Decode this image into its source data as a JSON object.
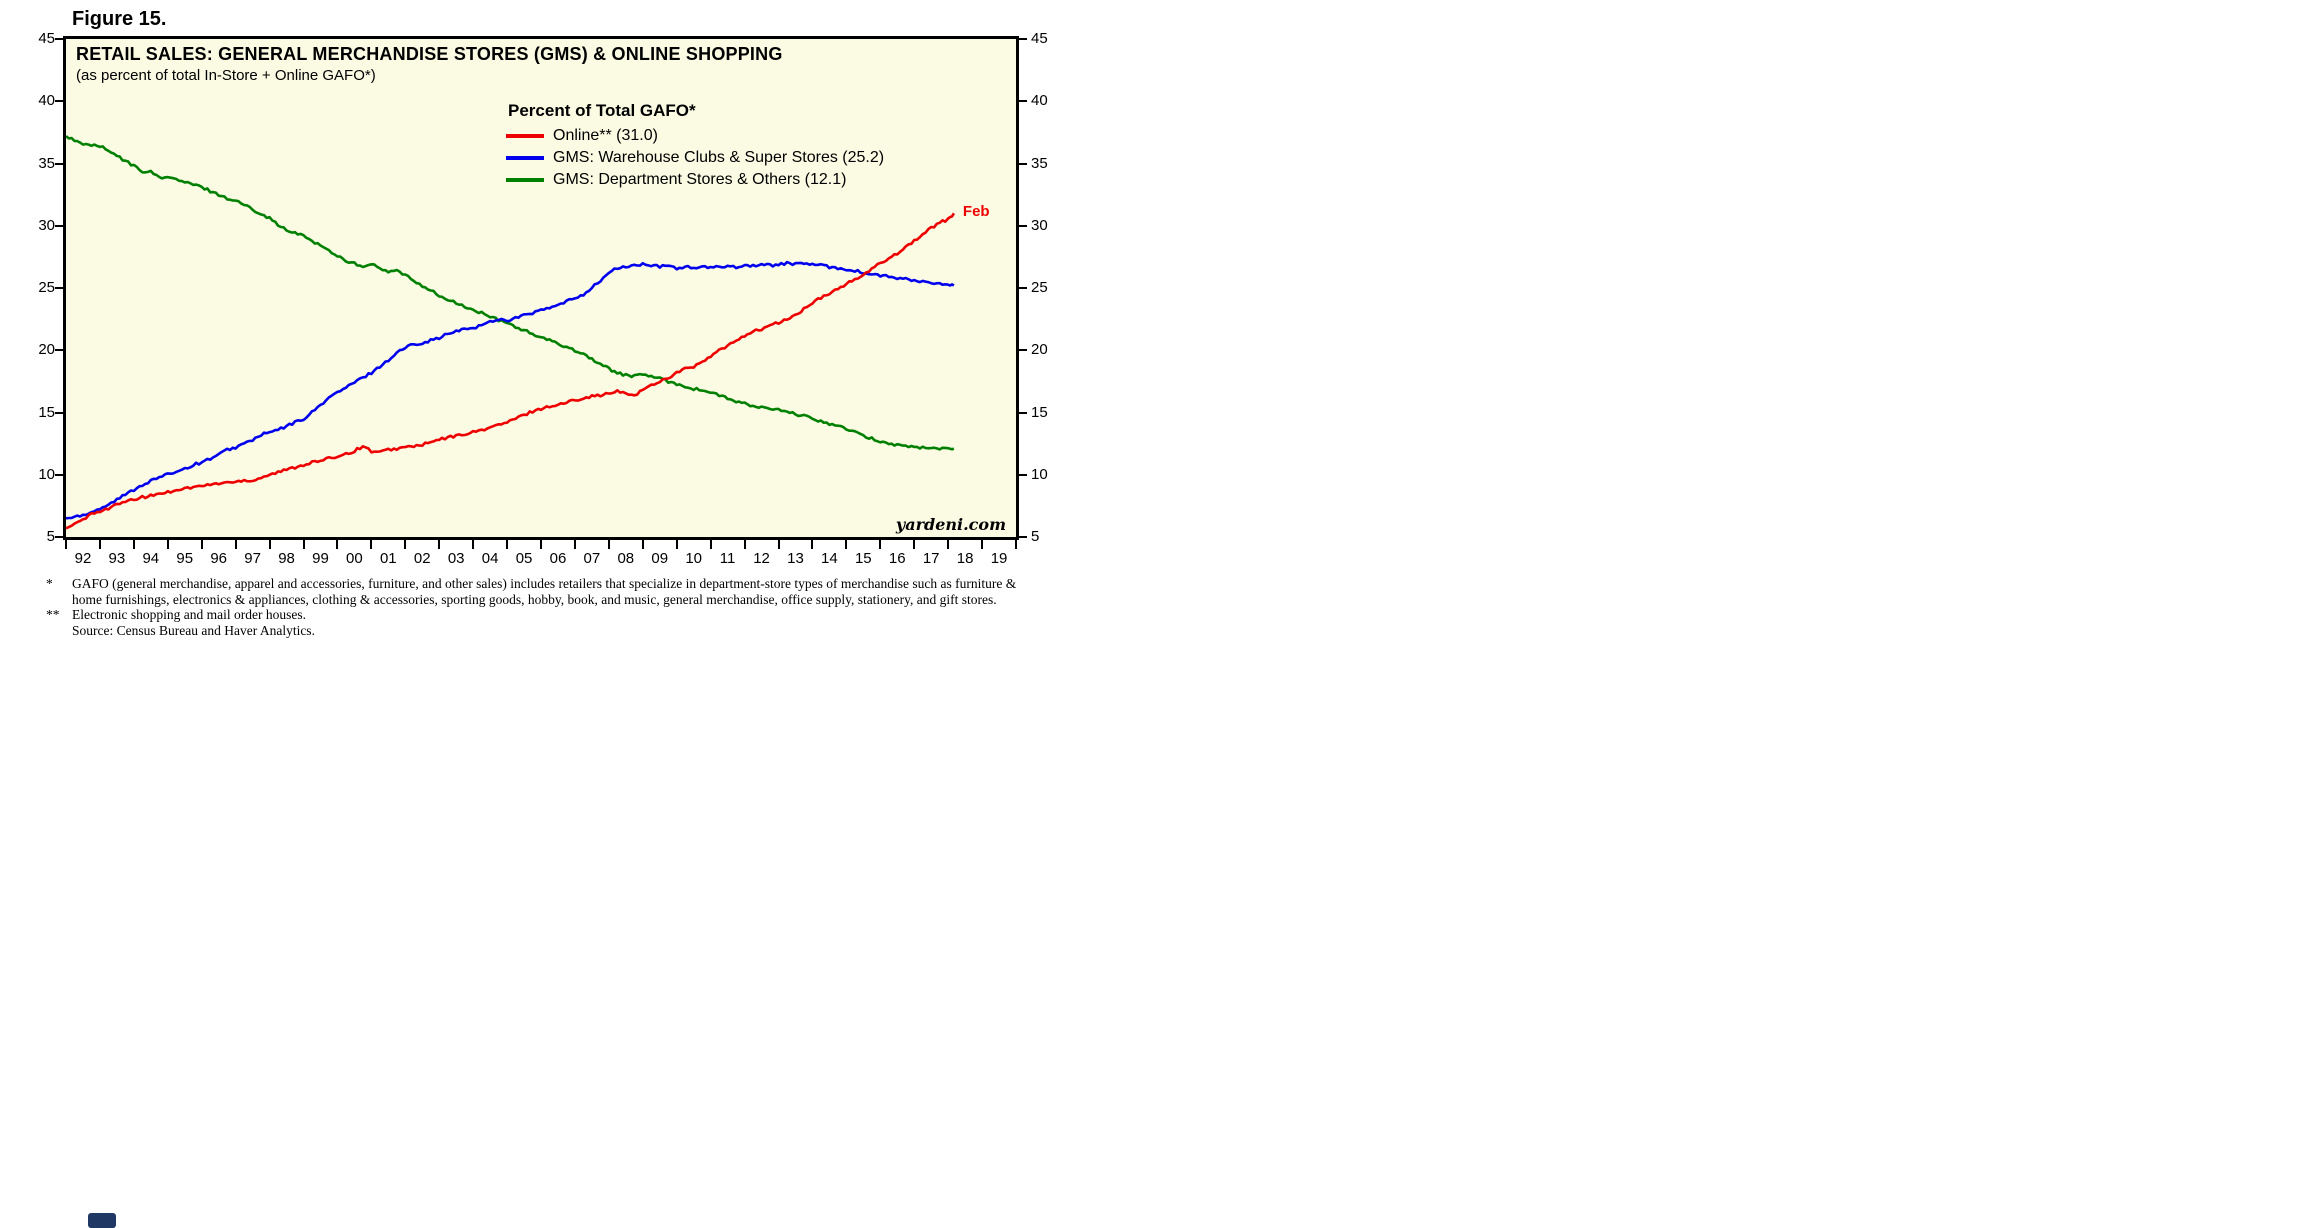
{
  "page": {
    "figure_label": "Figure 15."
  },
  "chart": {
    "title": "RETAIL SALES: GENERAL MERCHANDISE STORES (GMS) & ONLINE SHOPPING",
    "subtitle": "(as percent of total In-Store + Online GAFO*)",
    "legend_title": "Percent of Total GAFO*",
    "watermark": "yardeni.com",
    "plot_background": "#fbfbe4"
  },
  "chart_data": {
    "type": "line",
    "title": "RETAIL SALES: GENERAL MERCHANDISE STORES (GMS) & ONLINE SHOPPING",
    "subtitle": "(as percent of total In-Store + Online GAFO*)",
    "legend_title": "Percent of Total GAFO*",
    "legend_position": "inside-top-center",
    "grid": false,
    "ylim": [
      5,
      45
    ],
    "y_ticks": [
      5,
      10,
      15,
      20,
      25,
      30,
      35,
      40,
      45
    ],
    "x_axis_range": [
      1992,
      2020
    ],
    "x_tick_labels": [
      "92",
      "93",
      "94",
      "95",
      "96",
      "97",
      "98",
      "99",
      "00",
      "01",
      "02",
      "03",
      "04",
      "05",
      "06",
      "07",
      "08",
      "09",
      "10",
      "11",
      "12",
      "13",
      "14",
      "15",
      "16",
      "17",
      "18",
      "19"
    ],
    "x": [
      1992,
      1992.25,
      1992.5,
      1992.75,
      1993,
      1993.25,
      1993.5,
      1993.75,
      1994,
      1994.25,
      1994.5,
      1994.75,
      1995,
      1995.25,
      1995.5,
      1995.75,
      1996,
      1996.25,
      1996.5,
      1996.75,
      1997,
      1997.25,
      1997.5,
      1997.75,
      1998,
      1998.25,
      1998.5,
      1998.75,
      1999,
      1999.25,
      1999.5,
      1999.75,
      2000,
      2000.25,
      2000.5,
      2000.75,
      2001,
      2001.25,
      2001.5,
      2001.75,
      2002,
      2002.25,
      2002.5,
      2002.75,
      2003,
      2003.25,
      2003.5,
      2003.75,
      2004,
      2004.25,
      2004.5,
      2004.75,
      2005,
      2005.25,
      2005.5,
      2005.75,
      2006,
      2006.25,
      2006.5,
      2006.75,
      2007,
      2007.25,
      2007.5,
      2007.75,
      2008,
      2008.25,
      2008.5,
      2008.75,
      2009,
      2009.25,
      2009.5,
      2009.75,
      2010,
      2010.25,
      2010.5,
      2010.75,
      2011,
      2011.25,
      2011.5,
      2011.75,
      2012,
      2012.25,
      2012.5,
      2012.75,
      2013,
      2013.25,
      2013.5,
      2013.75,
      2014,
      2014.25,
      2014.5,
      2014.75,
      2015,
      2015.25,
      2015.5,
      2015.75,
      2016,
      2016.25,
      2016.5,
      2016.75,
      2017,
      2017.25,
      2017.5,
      2017.75,
      2018,
      2018.17
    ],
    "series": [
      {
        "name": "Online** (31.0)",
        "color": "#ee0000",
        "end_value": 31.0,
        "values": [
          5.7,
          6.0,
          6.4,
          6.8,
          7.1,
          7.3,
          7.6,
          7.8,
          8.0,
          8.2,
          8.3,
          8.5,
          8.6,
          8.8,
          8.9,
          9.0,
          9.1,
          9.2,
          9.3,
          9.4,
          9.4,
          9.6,
          9.5,
          9.8,
          10.0,
          10.2,
          10.4,
          10.6,
          10.8,
          11.0,
          11.1,
          11.3,
          11.5,
          11.7,
          11.9,
          12.3,
          11.9,
          11.8,
          12.0,
          12.1,
          12.2,
          12.3,
          12.4,
          12.6,
          12.8,
          13.0,
          13.1,
          13.3,
          13.4,
          13.6,
          13.8,
          14.0,
          14.2,
          14.5,
          14.8,
          15.1,
          15.3,
          15.5,
          15.6,
          15.8,
          16.0,
          16.2,
          16.3,
          16.4,
          16.5,
          16.7,
          16.5,
          16.4,
          16.8,
          17.2,
          17.5,
          17.8,
          18.2,
          18.5,
          18.7,
          19.0,
          19.5,
          20.0,
          20.3,
          20.8,
          21.2,
          21.5,
          21.7,
          22.0,
          22.2,
          22.5,
          22.8,
          23.3,
          23.8,
          24.2,
          24.5,
          25.0,
          25.3,
          25.7,
          26.0,
          26.5,
          27.0,
          27.4,
          27.8,
          28.3,
          28.8,
          29.3,
          29.8,
          30.3,
          30.5,
          31.0
        ]
      },
      {
        "name": "GMS: Warehouse Clubs & Super Stores (25.2)",
        "color": "#0000ee",
        "end_value": 25.2,
        "values": [
          6.5,
          6.6,
          6.8,
          7.0,
          7.3,
          7.6,
          8.0,
          8.4,
          8.8,
          9.2,
          9.5,
          9.8,
          10.0,
          10.3,
          10.5,
          10.8,
          11.0,
          11.3,
          11.6,
          12.0,
          12.2,
          12.5,
          12.8,
          13.2,
          13.4,
          13.6,
          13.9,
          14.2,
          14.5,
          15.0,
          15.6,
          16.2,
          16.6,
          17.0,
          17.4,
          17.8,
          18.2,
          18.7,
          19.2,
          19.8,
          20.2,
          20.5,
          20.6,
          20.8,
          21.0,
          21.3,
          21.5,
          21.7,
          21.8,
          22.0,
          22.3,
          22.5,
          22.4,
          22.6,
          22.8,
          23.0,
          23.2,
          23.4,
          23.6,
          23.9,
          24.2,
          24.5,
          25.0,
          25.6,
          26.2,
          26.6,
          26.7,
          26.8,
          26.9,
          26.8,
          26.7,
          26.8,
          26.6,
          26.7,
          26.6,
          26.7,
          26.6,
          26.7,
          26.8,
          26.7,
          26.8,
          26.8,
          26.9,
          26.8,
          26.9,
          27.0,
          26.9,
          27.0,
          26.9,
          26.8,
          26.7,
          26.6,
          26.5,
          26.4,
          26.2,
          26.1,
          26.0,
          25.9,
          25.8,
          25.7,
          25.6,
          25.5,
          25.4,
          25.3,
          25.2,
          25.2
        ]
      },
      {
        "name": "GMS: Department Stores & Others (12.1)",
        "color": "#008000",
        "end_value": 12.1,
        "values": [
          37.2,
          36.9,
          36.5,
          36.5,
          36.4,
          36.0,
          35.6,
          35.2,
          34.8,
          34.4,
          34.3,
          33.9,
          33.9,
          33.7,
          33.5,
          33.3,
          33.1,
          32.8,
          32.5,
          32.2,
          32.0,
          31.7,
          31.3,
          31.0,
          30.6,
          30.1,
          29.6,
          29.4,
          29.2,
          28.8,
          28.4,
          28.0,
          27.6,
          27.2,
          27.0,
          26.6,
          27.0,
          26.5,
          26.3,
          26.4,
          26.0,
          25.6,
          25.2,
          24.8,
          24.4,
          24.0,
          23.8,
          23.5,
          23.2,
          23.0,
          22.7,
          22.4,
          22.2,
          21.9,
          21.6,
          21.3,
          21.0,
          20.8,
          20.5,
          20.3,
          20.0,
          19.7,
          19.3,
          18.9,
          18.5,
          18.2,
          18.0,
          17.9,
          18.1,
          17.9,
          17.7,
          17.5,
          17.3,
          17.1,
          16.9,
          16.8,
          16.6,
          16.4,
          16.1,
          15.9,
          15.7,
          15.5,
          15.4,
          15.3,
          15.2,
          15.0,
          14.9,
          14.7,
          14.5,
          14.3,
          14.1,
          13.9,
          13.7,
          13.4,
          13.1,
          12.9,
          12.7,
          12.5,
          12.4,
          12.3,
          12.2,
          12.2,
          12.1,
          12.1,
          12.1,
          12.1
        ]
      }
    ],
    "annotations": [
      {
        "text": "Feb",
        "x": 2018.17,
        "y": 31.0,
        "color": "#ee0000"
      }
    ]
  },
  "footnotes": [
    {
      "marker": "*",
      "text": "GAFO (general merchandise, apparel and accessories, furniture, and other sales) includes retailers that specialize in department-store types of merchandise such as furniture & home furnishings, electronics & appliances, clothing & accessories, sporting goods, hobby, book, and music, general merchandise, office supply, stationery, and gift stores."
    },
    {
      "marker": "**",
      "text": "Electronic shopping and mail order houses."
    },
    {
      "marker": "",
      "text": "Source: Census Bureau and Haver Analytics."
    }
  ]
}
